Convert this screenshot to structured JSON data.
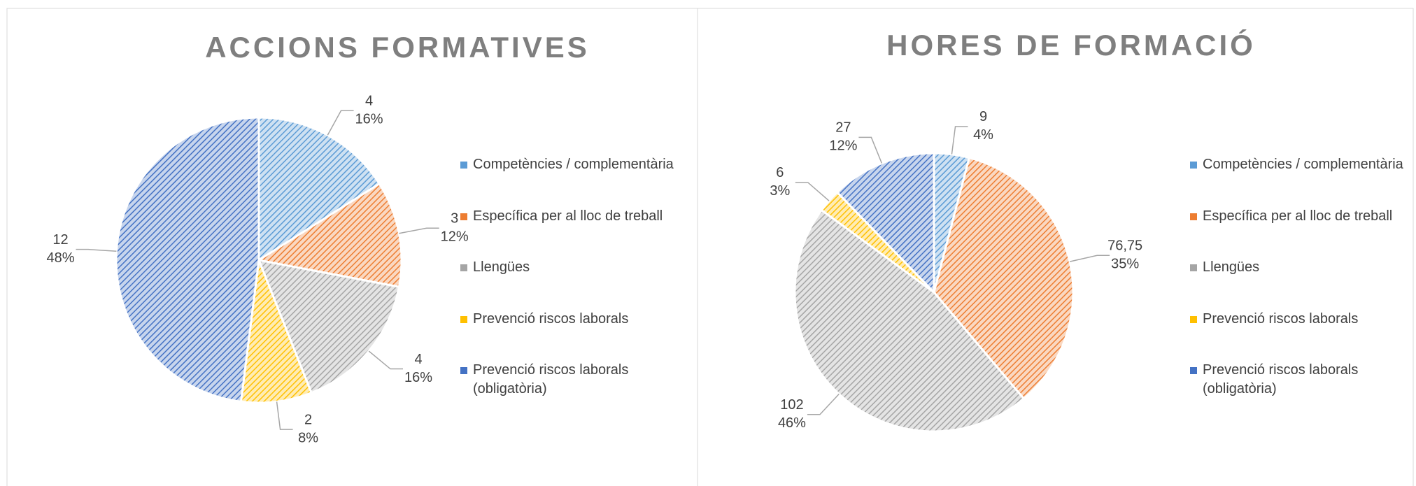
{
  "chart_data": [
    {
      "type": "pie",
      "title": "ACCIONS FORMATIVES",
      "categories": [
        "Competències / complementària",
        "Específica per al lloc de treball",
        "Llengües",
        "Prevenció riscos laborals",
        "Prevenció riscos laborals (obligatòria)"
      ],
      "values": [
        4,
        3,
        4,
        2,
        12
      ],
      "percent_labels": [
        "16%",
        "12%",
        "16%",
        "8%",
        "48%"
      ],
      "colors": [
        "#5b9bd5",
        "#ed7d31",
        "#a5a5a5",
        "#ffc000",
        "#4472c4"
      ],
      "legend": "right"
    },
    {
      "type": "pie",
      "title": "HORES  DE FORMACIÓ",
      "categories": [
        "Competències / complementària",
        "Específica per al lloc de treball",
        "Llengües",
        "Prevenció riscos laborals",
        "Prevenció riscos laborals (obligatòria)"
      ],
      "values": [
        9,
        76.75,
        102,
        6,
        27
      ],
      "value_labels": [
        "9",
        "76,75",
        "102",
        "6",
        "27"
      ],
      "percent_labels": [
        "4%",
        "35%",
        "46%",
        "3%",
        "12%"
      ],
      "colors": [
        "#5b9bd5",
        "#ed7d31",
        "#a5a5a5",
        "#ffc000",
        "#4472c4"
      ],
      "legend": "right"
    }
  ]
}
